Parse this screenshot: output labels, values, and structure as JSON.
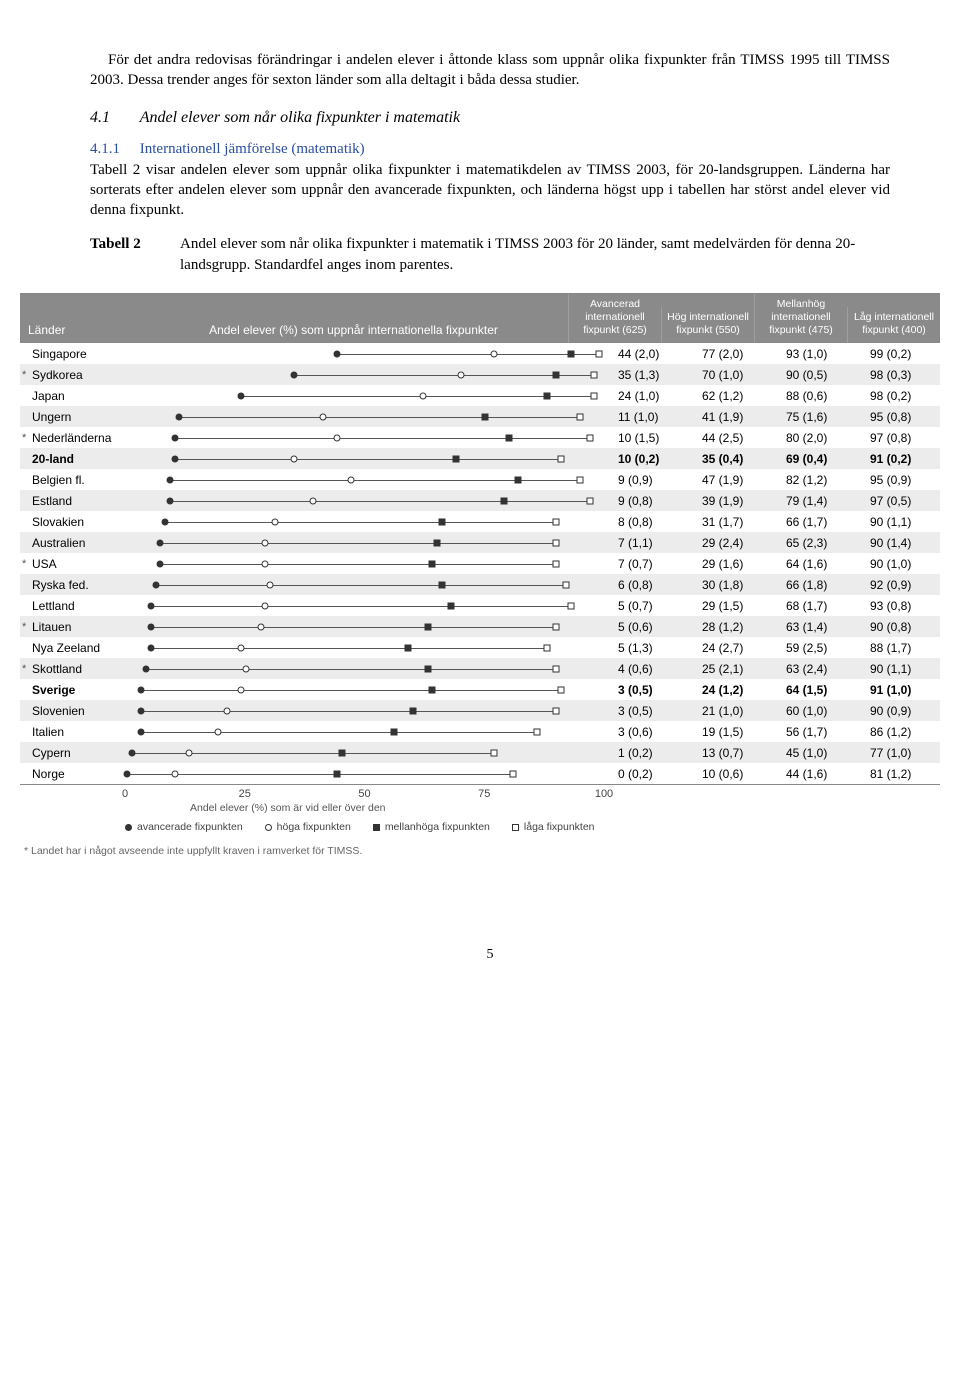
{
  "para1": "För det andra redovisas förändringar i andelen elever i åttonde klass som uppnår olika fixpunkter från TIMSS 1995 till TIMSS 2003. Dessa trender anges för sexton länder som alla deltagit i båda dessa studier.",
  "section41_num": "4.1",
  "section41_title": "Andel elever som når olika fixpunkter i matematik",
  "section411_num": "4.1.1",
  "section411_title": "Internationell jämförelse (matematik)",
  "para2": "Tabell 2 visar andelen elever som uppnår olika fixpunkter i matematikdelen av TIMSS 2003, för 20-landsgruppen. Länderna har sorterats efter andelen elever som uppnår den avancerade fixpunkten, och länderna högst upp i tabellen har störst andel elever vid denna fixpunkt.",
  "tab2_label": "Tabell 2",
  "tab2_caption": "Andel elever som når olika fixpunkter i matematik i TIMSS 2003 för 20 länder, samt medelvärden för denna 20-landsgrupp. Standardfel anges inom parentes.",
  "header": {
    "country": "Länder",
    "chart": "Andel elever (%) som uppnår internationella fixpunkter",
    "cols": [
      "Avancerad internationell fixpunkt (625)",
      "Hög internationell fixpunkt (550)",
      "Mellanhög internationell fixpunkt (475)",
      "Låg internationell fixpunkt (400)"
    ]
  },
  "chart": {
    "xmin": 0,
    "xmax": 100,
    "ticks": [
      0,
      25,
      50,
      75,
      100
    ],
    "bg_alt": "#ececec",
    "line_color": "#555555"
  },
  "rows": [
    {
      "star": "",
      "name": "Singapore",
      "v": [
        44,
        77,
        93,
        99
      ],
      "se": [
        "2,0",
        "2,0",
        "1,0",
        "0,2"
      ],
      "alt": 0,
      "bold": 0
    },
    {
      "star": "*",
      "name": "Sydkorea",
      "v": [
        35,
        70,
        90,
        98
      ],
      "se": [
        "1,3",
        "1,0",
        "0,5",
        "0,3"
      ],
      "alt": 1,
      "bold": 0
    },
    {
      "star": "",
      "name": "Japan",
      "v": [
        24,
        62,
        88,
        98
      ],
      "se": [
        "1,0",
        "1,2",
        "0,6",
        "0,2"
      ],
      "alt": 0,
      "bold": 0
    },
    {
      "star": "",
      "name": "Ungern",
      "v": [
        11,
        41,
        75,
        95
      ],
      "se": [
        "1,0",
        "1,9",
        "1,6",
        "0,8"
      ],
      "alt": 1,
      "bold": 0
    },
    {
      "star": "*",
      "name": "Nederländerna",
      "v": [
        10,
        44,
        80,
        97
      ],
      "se": [
        "1,5",
        "2,5",
        "2,0",
        "0,8"
      ],
      "alt": 0,
      "bold": 0
    },
    {
      "star": "",
      "name": "20-land",
      "v": [
        10,
        35,
        69,
        91
      ],
      "se": [
        "0,2",
        "0,4",
        "0,4",
        "0,2"
      ],
      "alt": 1,
      "bold": 1
    },
    {
      "star": "",
      "name": "Belgien fl.",
      "v": [
        9,
        47,
        82,
        95
      ],
      "se": [
        "0,9",
        "1,9",
        "1,2",
        "0,9"
      ],
      "alt": 0,
      "bold": 0
    },
    {
      "star": "",
      "name": "Estland",
      "v": [
        9,
        39,
        79,
        97
      ],
      "se": [
        "0,8",
        "1,9",
        "1,4",
        "0,5"
      ],
      "alt": 1,
      "bold": 0
    },
    {
      "star": "",
      "name": "Slovakien",
      "v": [
        8,
        31,
        66,
        90
      ],
      "se": [
        "0,8",
        "1,7",
        "1,7",
        "1,1"
      ],
      "alt": 0,
      "bold": 0
    },
    {
      "star": "",
      "name": "Australien",
      "v": [
        7,
        29,
        65,
        90
      ],
      "se": [
        "1,1",
        "2,4",
        "2,3",
        "1,4"
      ],
      "alt": 1,
      "bold": 0
    },
    {
      "star": "*",
      "name": "USA",
      "v": [
        7,
        29,
        64,
        90
      ],
      "se": [
        "0,7",
        "1,6",
        "1,6",
        "1,0"
      ],
      "alt": 0,
      "bold": 0
    },
    {
      "star": "",
      "name": "Ryska fed.",
      "v": [
        6,
        30,
        66,
        92
      ],
      "se": [
        "0,8",
        "1,8",
        "1,8",
        "0,9"
      ],
      "alt": 1,
      "bold": 0
    },
    {
      "star": "",
      "name": "Lettland",
      "v": [
        5,
        29,
        68,
        93
      ],
      "se": [
        "0,7",
        "1,5",
        "1,7",
        "0,8"
      ],
      "alt": 0,
      "bold": 0
    },
    {
      "star": "*",
      "name": "Litauen",
      "v": [
        5,
        28,
        63,
        90
      ],
      "se": [
        "0,6",
        "1,2",
        "1,4",
        "0,8"
      ],
      "alt": 1,
      "bold": 0
    },
    {
      "star": "",
      "name": "Nya Zeeland",
      "v": [
        5,
        24,
        59,
        88
      ],
      "se": [
        "1,3",
        "2,7",
        "2,5",
        "1,7"
      ],
      "alt": 0,
      "bold": 0
    },
    {
      "star": "*",
      "name": "Skottland",
      "v": [
        4,
        25,
        63,
        90
      ],
      "se": [
        "0,6",
        "2,1",
        "2,4",
        "1,1"
      ],
      "alt": 1,
      "bold": 0
    },
    {
      "star": "",
      "name": "Sverige",
      "v": [
        3,
        24,
        64,
        91
      ],
      "se": [
        "0,5",
        "1,2",
        "1,5",
        "1,0"
      ],
      "alt": 0,
      "bold": 1
    },
    {
      "star": "",
      "name": "Slovenien",
      "v": [
        3,
        21,
        60,
        90
      ],
      "se": [
        "0,5",
        "1,0",
        "1,0",
        "0,9"
      ],
      "alt": 1,
      "bold": 0
    },
    {
      "star": "",
      "name": "Italien",
      "v": [
        3,
        19,
        56,
        86
      ],
      "se": [
        "0,6",
        "1,5",
        "1,7",
        "1,2"
      ],
      "alt": 0,
      "bold": 0
    },
    {
      "star": "",
      "name": "Cypern",
      "v": [
        1,
        13,
        45,
        77
      ],
      "se": [
        "0,2",
        "0,7",
        "1,0",
        "1,0"
      ],
      "alt": 1,
      "bold": 0
    },
    {
      "star": "",
      "name": "Norge",
      "v": [
        0,
        10,
        44,
        81
      ],
      "se": [
        "0,2",
        "0,6",
        "1,6",
        "1,2"
      ],
      "alt": 0,
      "bold": 0
    }
  ],
  "legend": {
    "caption": "Andel elever (%) som är vid eller över den",
    "items": [
      "avancerade fixpunkten",
      "höga fixpunkten",
      "mellanhöga fixpunkten",
      "låga fixpunkten"
    ]
  },
  "footnote": "* Landet har i något avseende inte uppfyllt kraven i ramverket för TIMSS.",
  "pagenum": "5"
}
